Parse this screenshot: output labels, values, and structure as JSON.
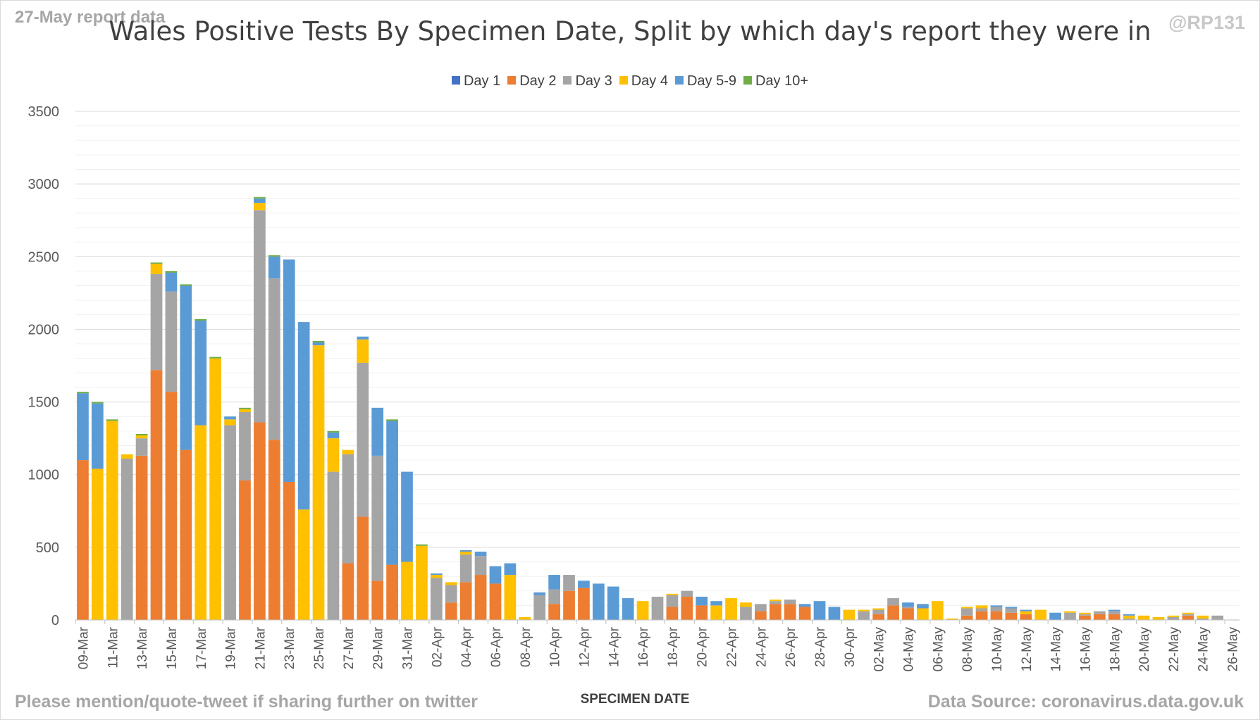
{
  "header": {
    "report_label": "27-May report data",
    "handle": "@RP131"
  },
  "footer": {
    "share_note": "Please mention/quote-tweet if sharing further on twitter",
    "source_note": "Data Source: coronavirus.data.gov.uk"
  },
  "colors": {
    "Day 1": "#4472c4",
    "Day 2": "#ed7d31",
    "Day 3": "#a5a5a5",
    "Day 4": "#ffc000",
    "Day 5-9": "#5b9bd5",
    "Day 10+": "#70ad47"
  },
  "chart_data": {
    "type": "bar",
    "stacked": true,
    "title": "Wales Positive Tests By Specimen Date, Split by which day's report they were in",
    "xlabel": "SPECIMEN DATE",
    "ylabel": "",
    "ylim": [
      0,
      3500
    ],
    "yticks": [
      0,
      500,
      1000,
      1500,
      2000,
      2500,
      3000,
      3500
    ],
    "grid": true,
    "legend": "top",
    "categories": [
      "09-Mar",
      "10-Mar",
      "11-Mar",
      "12-Mar",
      "13-Mar",
      "14-Mar",
      "15-Mar",
      "16-Mar",
      "17-Mar",
      "18-Mar",
      "19-Mar",
      "20-Mar",
      "21-Mar",
      "22-Mar",
      "23-Mar",
      "24-Mar",
      "25-Mar",
      "26-Mar",
      "27-Mar",
      "28-Mar",
      "29-Mar",
      "30-Mar",
      "31-Mar",
      "01-Apr",
      "02-Apr",
      "03-Apr",
      "04-Apr",
      "05-Apr",
      "06-Apr",
      "07-Apr",
      "08-Apr",
      "09-Apr",
      "10-Apr",
      "11-Apr",
      "12-Apr",
      "13-Apr",
      "14-Apr",
      "15-Apr",
      "16-Apr",
      "17-Apr",
      "18-Apr",
      "19-Apr",
      "20-Apr",
      "21-Apr",
      "22-Apr",
      "23-Apr",
      "24-Apr",
      "25-Apr",
      "26-Apr",
      "27-Apr",
      "28-Apr",
      "29-Apr",
      "30-Apr",
      "01-May",
      "02-May",
      "03-May",
      "04-May",
      "05-May",
      "06-May",
      "07-May",
      "08-May",
      "09-May",
      "10-May",
      "11-May",
      "12-May",
      "13-May",
      "14-May",
      "15-May",
      "16-May",
      "17-May",
      "18-May",
      "19-May",
      "20-May",
      "21-May",
      "22-May",
      "23-May",
      "24-May",
      "25-May",
      "26-May"
    ],
    "series": [
      {
        "name": "Day 1",
        "values": [
          0,
          0,
          0,
          0,
          0,
          0,
          0,
          0,
          0,
          0,
          0,
          0,
          0,
          0,
          0,
          0,
          0,
          0,
          0,
          0,
          0,
          0,
          0,
          0,
          0,
          0,
          0,
          0,
          0,
          0,
          0,
          0,
          0,
          0,
          0,
          0,
          0,
          0,
          0,
          0,
          0,
          0,
          0,
          0,
          0,
          0,
          0,
          0,
          0,
          0,
          0,
          0,
          0,
          0,
          0,
          0,
          0,
          0,
          0,
          0,
          0,
          0,
          0,
          0,
          0,
          0,
          0,
          0,
          0,
          0,
          0,
          0,
          0,
          0,
          0,
          0,
          0,
          0,
          0
        ]
      },
      {
        "name": "Day 2",
        "values": [
          1100,
          0,
          0,
          0,
          1130,
          1720,
          1570,
          1170,
          0,
          0,
          0,
          960,
          1360,
          1240,
          950,
          0,
          0,
          0,
          390,
          710,
          270,
          380,
          0,
          0,
          0,
          120,
          260,
          310,
          250,
          0,
          0,
          0,
          110,
          200,
          220,
          0,
          0,
          0,
          0,
          0,
          90,
          160,
          100,
          0,
          0,
          0,
          60,
          110,
          110,
          90,
          0,
          0,
          0,
          0,
          40,
          100,
          80,
          0,
          0,
          0,
          30,
          60,
          60,
          50,
          40,
          0,
          0,
          0,
          30,
          40,
          40,
          0,
          0,
          0,
          0,
          30,
          0,
          0,
          0
        ]
      },
      {
        "name": "Day 3",
        "values": [
          0,
          0,
          0,
          1110,
          120,
          660,
          690,
          0,
          0,
          0,
          1340,
          470,
          1460,
          1110,
          0,
          0,
          0,
          1020,
          750,
          1060,
          860,
          0,
          0,
          0,
          290,
          120,
          190,
          130,
          0,
          0,
          0,
          170,
          100,
          110,
          0,
          0,
          0,
          0,
          0,
          160,
          80,
          40,
          0,
          0,
          0,
          90,
          50,
          20,
          30,
          0,
          0,
          0,
          0,
          60,
          30,
          50,
          10,
          0,
          0,
          0,
          50,
          20,
          30,
          30,
          0,
          0,
          0,
          50,
          10,
          20,
          20,
          10,
          0,
          0,
          20,
          10,
          10,
          30,
          0
        ]
      },
      {
        "name": "Day 4",
        "values": [
          0,
          1040,
          1370,
          30,
          20,
          70,
          0,
          0,
          1340,
          1800,
          40,
          20,
          50,
          0,
          0,
          760,
          1890,
          230,
          30,
          160,
          0,
          0,
          400,
          510,
          20,
          20,
          20,
          0,
          0,
          310,
          20,
          0,
          0,
          0,
          0,
          0,
          0,
          0,
          130,
          0,
          10,
          0,
          0,
          100,
          150,
          30,
          0,
          10,
          0,
          0,
          0,
          0,
          70,
          10,
          10,
          0,
          0,
          80,
          130,
          10,
          10,
          20,
          0,
          0,
          20,
          70,
          0,
          10,
          10,
          0,
          0,
          20,
          30,
          20,
          10,
          10,
          20,
          0,
          0
        ]
      },
      {
        "name": "Day 5-9",
        "values": [
          460,
          450,
          0,
          0,
          0,
          0,
          130,
          1130,
          720,
          0,
          20,
          0,
          30,
          150,
          1530,
          1290,
          20,
          40,
          0,
          20,
          330,
          990,
          620,
          0,
          10,
          0,
          10,
          30,
          120,
          80,
          0,
          20,
          100,
          0,
          50,
          250,
          230,
          150,
          0,
          0,
          0,
          0,
          60,
          30,
          0,
          0,
          0,
          0,
          0,
          20,
          130,
          90,
          0,
          0,
          0,
          0,
          30,
          30,
          0,
          0,
          0,
          0,
          10,
          10,
          10,
          0,
          50,
          0,
          0,
          0,
          10,
          10,
          0,
          0,
          0,
          0,
          0,
          0,
          0
        ]
      },
      {
        "name": "Day 10+",
        "values": [
          10,
          10,
          10,
          0,
          10,
          10,
          10,
          10,
          10,
          10,
          0,
          10,
          10,
          10,
          0,
          0,
          10,
          10,
          0,
          0,
          0,
          10,
          0,
          10,
          0,
          0,
          0,
          0,
          0,
          0,
          0,
          0,
          0,
          0,
          0,
          0,
          0,
          0,
          0,
          0,
          0,
          0,
          0,
          0,
          0,
          0,
          0,
          0,
          0,
          0,
          0,
          0,
          0,
          0,
          0,
          0,
          0,
          0,
          0,
          0,
          0,
          0,
          0,
          0,
          0,
          0,
          0,
          0,
          0,
          0,
          0,
          0,
          0,
          0,
          0,
          0,
          0,
          0,
          0
        ]
      }
    ]
  }
}
